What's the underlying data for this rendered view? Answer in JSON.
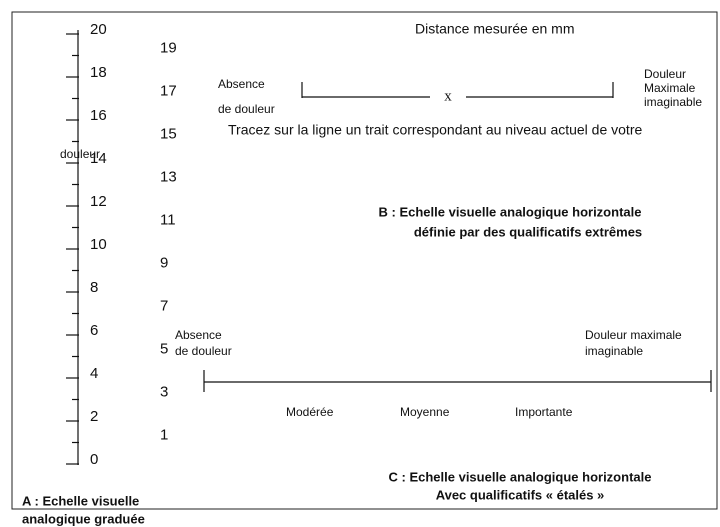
{
  "ruler": {
    "even_labels": [
      20,
      18,
      16,
      14,
      12,
      10,
      8,
      6,
      4,
      2,
      0
    ],
    "odd_labels": [
      19,
      17,
      15,
      13,
      11,
      9,
      7,
      5,
      3,
      1
    ],
    "axis_label": "douleur",
    "caption": [
      "A : Echelle visuelle",
      "analogique graduée"
    ]
  },
  "scale_b": {
    "header": "Distance mesurée en mm",
    "left_label": [
      "Absence",
      "de douleur"
    ],
    "right_label": [
      "Douleur",
      "Maximale",
      "imaginable"
    ],
    "marker": "x",
    "instruction": "Tracez sur la ligne un trait correspondant au niveau actuel de votre",
    "caption": [
      "B : Echelle visuelle analogique horizontale",
      "définie par des qualificatifs extrêmes"
    ]
  },
  "scale_c": {
    "left_label": [
      "Absence",
      "de douleur"
    ],
    "right_label": [
      "Douleur maximale",
      "imaginable"
    ],
    "qualifiers": [
      "Modérée",
      "Moyenne",
      "Importante"
    ],
    "caption": [
      "C : Echelle visuelle analogique horizontale",
      "Avec qualificatifs « étalés »"
    ]
  }
}
